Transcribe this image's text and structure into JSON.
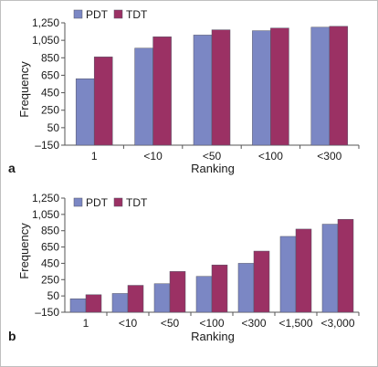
{
  "colors": {
    "pdt": "#7b87c4",
    "tdt": "#9b3164",
    "bar_stroke": "#555566",
    "axis": "#555555"
  },
  "chart_data": [
    {
      "panel_label": "a",
      "type": "bar",
      "categories": [
        "1",
        "<10",
        "<50",
        "<100",
        "<300"
      ],
      "series": [
        {
          "name": "PDT",
          "values": [
            610,
            960,
            1110,
            1160,
            1200
          ]
        },
        {
          "name": "TDT",
          "values": [
            860,
            1090,
            1170,
            1190,
            1210
          ]
        }
      ],
      "xlabel": "Ranking",
      "ylabel": "Frequency",
      "ylim": [
        -150,
        1250
      ],
      "yticks": [
        -150,
        50,
        250,
        450,
        650,
        850,
        1050,
        1250
      ],
      "ytick_labels": [
        "–150",
        "50",
        "250",
        "450",
        "650",
        "850",
        "1,050",
        "1,250"
      ],
      "legend": "top-left"
    },
    {
      "panel_label": "b",
      "type": "bar",
      "categories": [
        "1",
        "<10",
        "<50",
        "<100",
        "<300",
        "<1,500",
        "<3,000"
      ],
      "series": [
        {
          "name": "PDT",
          "values": [
            15,
            80,
            200,
            290,
            450,
            780,
            930
          ]
        },
        {
          "name": "TDT",
          "values": [
            65,
            180,
            350,
            430,
            600,
            870,
            990
          ]
        }
      ],
      "xlabel": "Ranking",
      "ylabel": "Frequency",
      "ylim": [
        -150,
        1250
      ],
      "yticks": [
        -150,
        50,
        250,
        450,
        650,
        850,
        1050,
        1250
      ],
      "ytick_labels": [
        "–150",
        "50",
        "250",
        "450",
        "650",
        "850",
        "1,050",
        "1,250"
      ],
      "legend": "top-left"
    }
  ]
}
